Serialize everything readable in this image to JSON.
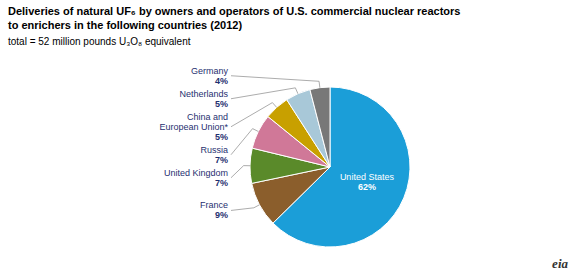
{
  "chart_data": {
    "type": "pie",
    "title": "Deliveries of natural UF₆ by owners and operators of U.S. commercial nuclear reactors\nto enrichers  in the following countries (2012)",
    "subtitle": "total = 52 million pounds U₃O₈ equivalent",
    "categories": [
      "United States",
      "France",
      "United Kingdom",
      "Russia",
      "China and\nEuropean Union*",
      "Netherlands",
      "Germany"
    ],
    "values": [
      62,
      9,
      7,
      7,
      5,
      5,
      4
    ],
    "value_labels": [
      "62%",
      "9%",
      "7%",
      "7%",
      "5%",
      "5%",
      "4%"
    ],
    "colors": [
      "#1B9ED8",
      "#8B5E2C",
      "#5A8A2A",
      "#D07898",
      "#C8A000",
      "#A8C8D8",
      "#787878"
    ],
    "data_labels": true,
    "annotations": [
      "eia"
    ]
  }
}
